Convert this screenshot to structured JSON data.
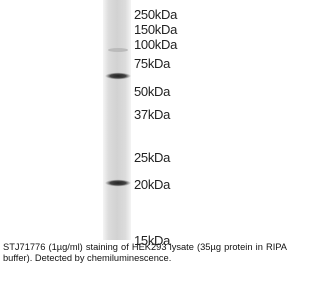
{
  "blot": {
    "markers": [
      "250kDa",
      "150kDa",
      "100kDa",
      "75kDa",
      "50kDa",
      "37kDa",
      "25kDa",
      "20kDa",
      "15kDa"
    ],
    "caption": "STJ71776 (1µg/ml) staining of HEK293 lysate (35µg protein in RIPA buffer). Detected by chemiluminescence."
  }
}
